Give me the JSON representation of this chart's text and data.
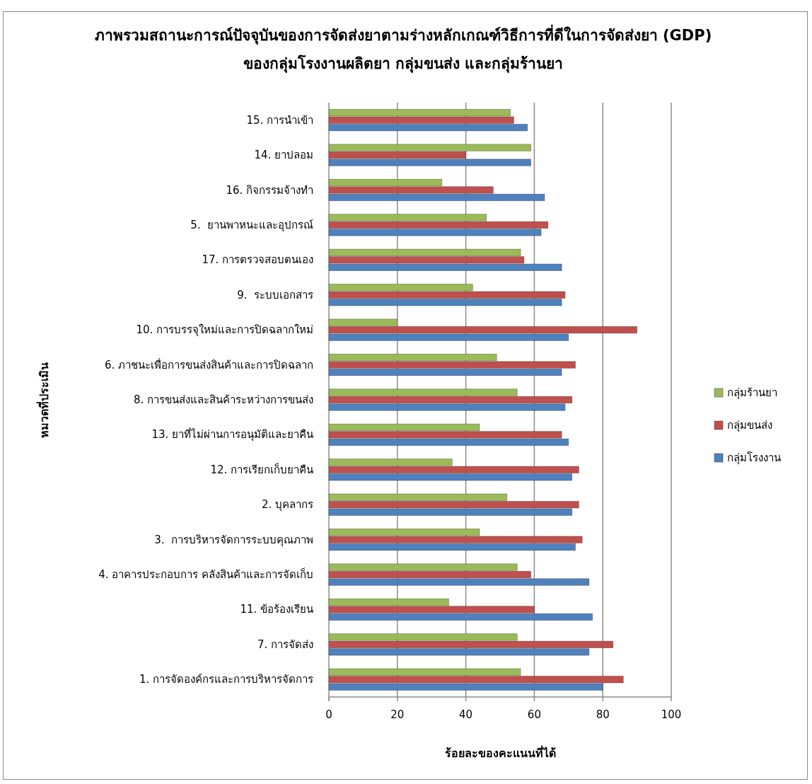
{
  "chart_data": {
    "type": "bar",
    "orientation": "horizontal",
    "title": "ภาพรวมสถานะการณ์ปัจจุบันของการจัดส่งยาตามร่างหลักเกณฑ์วิธีการที่ดีในการจัดส่งยา (GDP) ของกลุ่มโรงงานผลิตยา กลุ่มขนส่ง และกลุ่มร้านยา",
    "xlabel": "ร้อยละของคะแนนที่ได้",
    "ylabel": "หมวดที่ประเมิน",
    "categories": [
      "15. การนำเข้า",
      "14. ยาปลอม",
      "16. กิจกรรมจ้างทำ",
      "5.  ยานพาหนะและอุปกรณ์",
      "17. การตรวจสอบตนเอง",
      "9.  ระบบเอกสาร",
      "10. การบรรจุใหม่และการปิดฉลากใหม่",
      "6. ภาชนะเพื่อการขนส่งสินค้าและการปิดฉลาก",
      "8. การขนส่งและสินค้าระหว่างการขนส่ง",
      "13. ยาที่ไม่ผ่านการอนุมัติและยาคืน",
      "12. การเรียกเก็บยาคืน",
      "2. บุคลากร",
      "3.  การบริหารจัดการระบบคุณภาพ",
      "4. อาคารประกอบการ คลังสินค้าและการจัดเก็บ",
      "11. ข้อร้องเรียน",
      "7. การจัดส่ง",
      "1. การจัดองค์กรและการบริหารจัดการ"
    ],
    "series": [
      {
        "name": "กลุ่มร้านยา",
        "color": "#9bbb59",
        "values": [
          53,
          59,
          33,
          46,
          56,
          42,
          20,
          49,
          55,
          44,
          36,
          52,
          44,
          55,
          35,
          55,
          56
        ]
      },
      {
        "name": "กลุ่มขนส่ง",
        "color": "#c0504d",
        "values": [
          54,
          40,
          48,
          64,
          57,
          69,
          90,
          72,
          71,
          68,
          73,
          73,
          74,
          59,
          60,
          83,
          86
        ]
      },
      {
        "name": "กลุ่มโรงงาน",
        "color": "#4f81bd",
        "values": [
          58,
          59,
          63,
          62,
          68,
          68,
          70,
          68,
          69,
          70,
          71,
          71,
          72,
          76,
          77,
          76,
          80
        ]
      }
    ],
    "xlim": [
      0,
      100
    ],
    "xticks": [
      0,
      20,
      40,
      60,
      80,
      100
    ],
    "grid": "x",
    "legend": "right"
  }
}
